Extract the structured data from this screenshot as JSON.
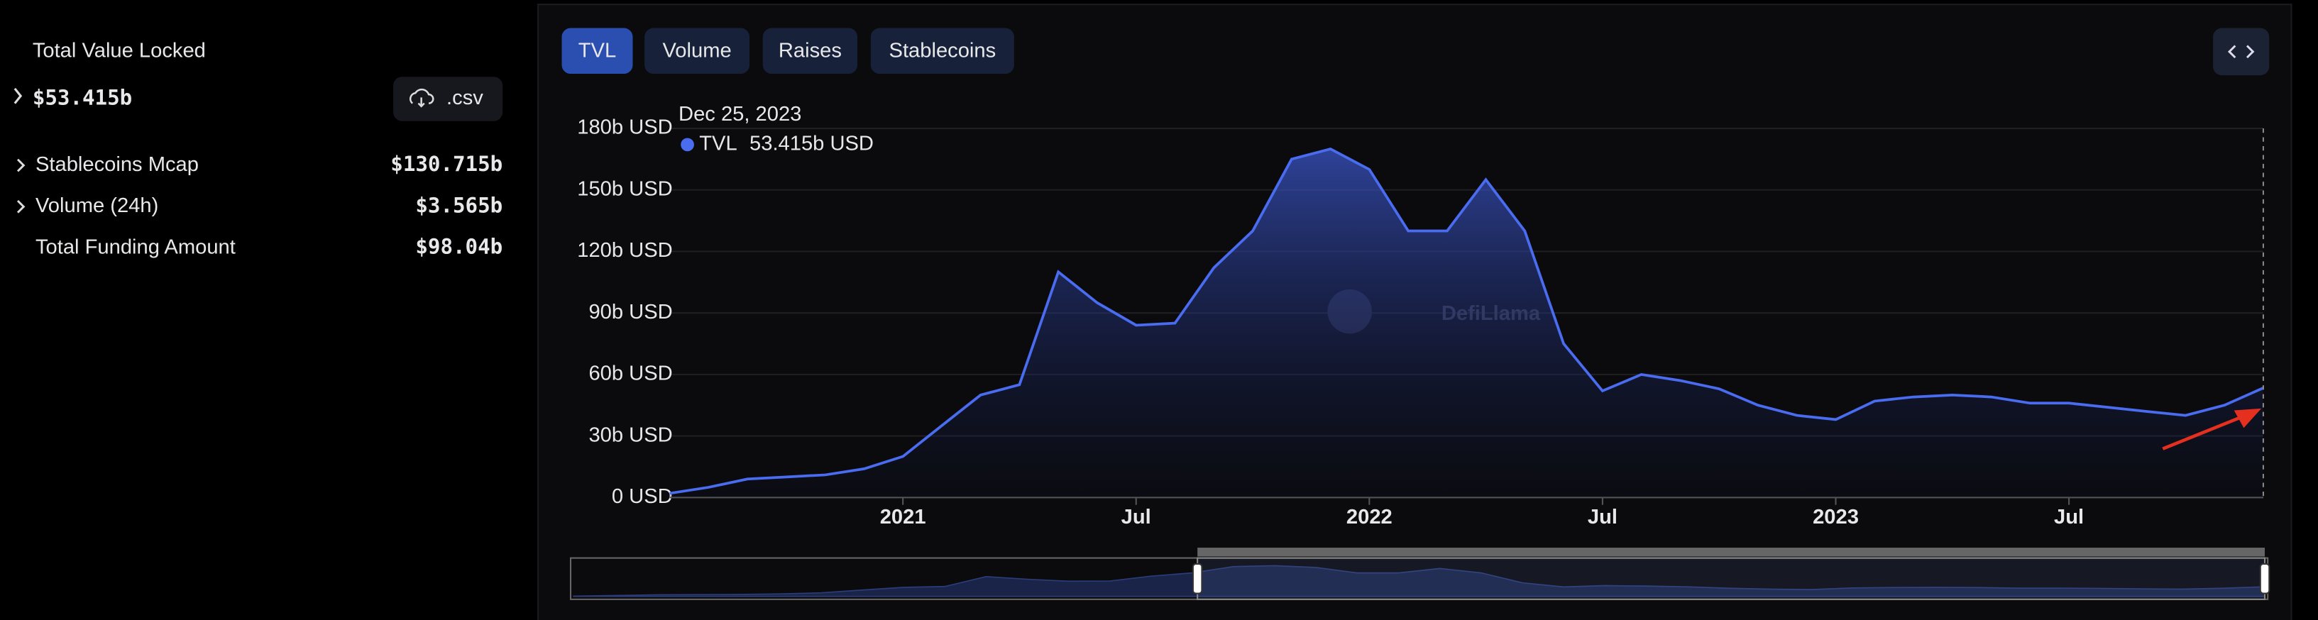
{
  "sidebar": {
    "title": "Total Value Locked",
    "value": "$53.415b",
    "csv": ".csv",
    "rows": [
      {
        "label": "Stablecoins Mcap",
        "value": "$130.715b"
      },
      {
        "label": "Volume (24h)",
        "value": "$3.565b"
      },
      {
        "label": "Total Funding Amount",
        "value": "$98.04b"
      }
    ]
  },
  "tabs": [
    "TVL",
    "Volume",
    "Raises",
    "Stablecoins"
  ],
  "chart_data": {
    "type": "area",
    "x": [
      "2020-07",
      "2020-08",
      "2020-09",
      "2020-10",
      "2020-11",
      "2020-12",
      "2021-01",
      "2021-02",
      "2021-03",
      "2021-04",
      "2021-05",
      "2021-06",
      "2021-07",
      "2021-08",
      "2021-09",
      "2021-10",
      "2021-11",
      "2021-12",
      "2022-01",
      "2022-02",
      "2022-03",
      "2022-04",
      "2022-05",
      "2022-06",
      "2022-07",
      "2022-08",
      "2022-09",
      "2022-10",
      "2022-11",
      "2022-12",
      "2023-01",
      "2023-02",
      "2023-03",
      "2023-04",
      "2023-05",
      "2023-06",
      "2023-07",
      "2023-08",
      "2023-09",
      "2023-10",
      "2023-11",
      "2023-12"
    ],
    "series": [
      {
        "name": "TVL",
        "color": "#4a6cf0",
        "values": [
          2,
          5,
          9,
          10,
          11,
          14,
          20,
          35,
          50,
          55,
          110,
          95,
          84,
          85,
          112,
          130,
          165,
          170,
          160,
          130,
          130,
          155,
          130,
          75,
          52,
          60,
          57,
          53,
          45,
          40,
          38,
          47,
          49,
          50,
          49,
          46,
          46,
          44,
          42,
          40,
          45,
          53.415
        ]
      }
    ],
    "xlim": [
      "2020-07",
      "2023-12"
    ],
    "xticks": [
      {
        "value": "2021-01",
        "label": "2021"
      },
      {
        "value": "2021-07",
        "label": "Jul"
      },
      {
        "value": "2022-01",
        "label": "2022"
      },
      {
        "value": "2022-07",
        "label": "Jul"
      },
      {
        "value": "2023-01",
        "label": "2023"
      },
      {
        "value": "2023-07",
        "label": "Jul"
      }
    ],
    "ylim": [
      0,
      180
    ],
    "yticks": [
      {
        "value": 0,
        "label": "0 USD"
      },
      {
        "value": 30,
        "label": "30b USD"
      },
      {
        "value": 60,
        "label": "60b USD"
      },
      {
        "value": 90,
        "label": "90b USD"
      },
      {
        "value": 120,
        "label": "120b USD"
      },
      {
        "value": 150,
        "label": "150b USD"
      },
      {
        "value": 180,
        "label": "180b USD"
      }
    ],
    "grid": true,
    "tooltip": {
      "date": "Dec 25, 2023",
      "value": "53.415b USD"
    },
    "watermark": "DefiLlama"
  }
}
